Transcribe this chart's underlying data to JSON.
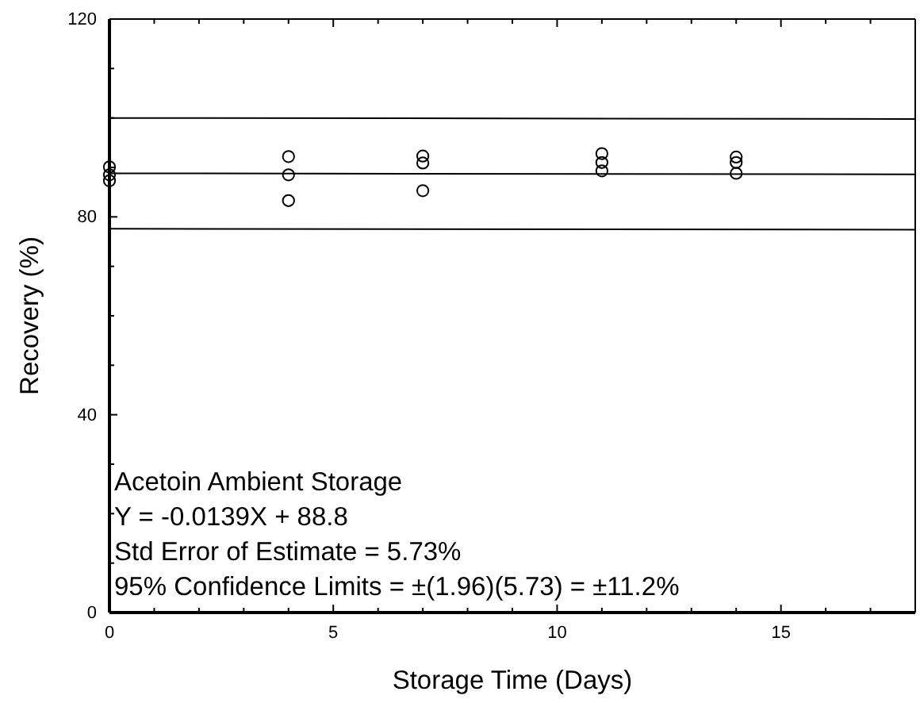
{
  "chart_data": {
    "type": "scatter",
    "xlabel": "Storage Time (Days)",
    "ylabel": "Recovery (%)",
    "annotations": [
      "Acetoin Ambient Storage",
      "Y = -0.0139X + 88.8",
      "Std Error of Estimate = 5.73%",
      "95% Confidence Limits = ±(1.96)(5.73) = ±11.2%"
    ],
    "xlim": [
      0,
      18
    ],
    "ylim": [
      0,
      120
    ],
    "xticks": [
      0,
      {
        "value": 1,
        "label": null
      },
      {
        "value": 2,
        "label": null
      },
      {
        "value": 3,
        "label": null
      },
      {
        "value": 4,
        "label": null
      },
      5,
      {
        "value": 6,
        "label": null
      },
      {
        "value": 7,
        "label": null
      },
      {
        "value": 8,
        "label": null
      },
      {
        "value": 9,
        "label": null
      },
      10,
      {
        "value": 11,
        "label": null
      },
      {
        "value": 12,
        "label": null
      },
      {
        "value": 13,
        "label": null
      },
      {
        "value": 14,
        "label": null
      },
      15,
      {
        "value": 16,
        "label": null
      },
      {
        "value": 17,
        "label": null
      }
    ],
    "yticks": [
      0,
      {
        "value": 10,
        "label": null
      },
      {
        "value": 20,
        "label": null
      },
      {
        "value": 30,
        "label": null
      },
      40,
      {
        "value": 50,
        "label": null
      },
      {
        "value": 60,
        "label": null
      },
      {
        "value": 70,
        "label": null
      },
      80,
      {
        "value": 90,
        "label": null
      },
      {
        "value": 100,
        "label": null
      },
      {
        "value": 110,
        "label": null
      },
      120
    ],
    "series": [
      {
        "color": "#000000",
        "marker": "circle",
        "x": [
          0,
          0,
          0,
          4,
          4,
          4,
          7,
          7,
          7,
          11,
          11,
          11,
          14,
          14,
          14
        ],
        "values": [
          90.1,
          88.5,
          87.3,
          92.2,
          88.5,
          83.3,
          92.3,
          90.9,
          85.3,
          92.8,
          91.0,
          89.3,
          92.1,
          91.0,
          88.8
        ]
      },
      {
        "type": "line",
        "color": "#000000",
        "line_style": "solid",
        "x": [
          0,
          18
        ],
        "values": [
          100.0,
          99.8
        ]
      },
      {
        "type": "line",
        "color": "#000000",
        "line_style": "solid",
        "x": [
          0,
          18
        ],
        "values": [
          88.8,
          88.6
        ]
      },
      {
        "type": "line",
        "color": "#000000",
        "line_style": "solid",
        "x": [
          0,
          18
        ],
        "values": [
          77.6,
          77.4
        ]
      }
    ]
  }
}
